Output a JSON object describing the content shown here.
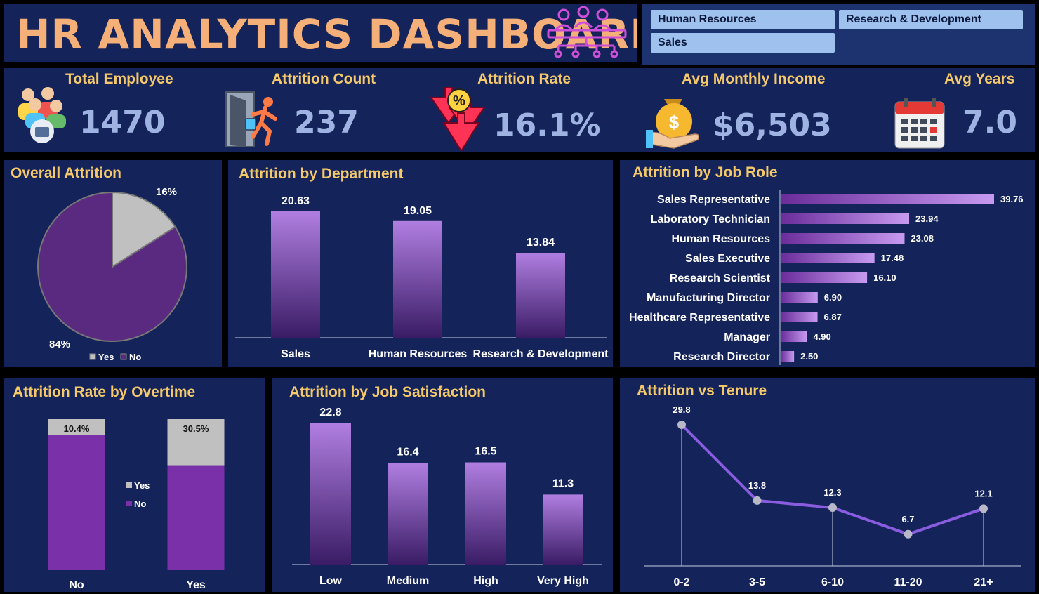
{
  "header": {
    "title": "HR ANALYTICS DASHBOARD"
  },
  "slicers": [
    "Human Resources",
    "Research & Development",
    "Sales"
  ],
  "kpis": [
    {
      "label": "Total Employee",
      "value": "1470",
      "icon": "people-icon"
    },
    {
      "label": "Attrition Count",
      "value": "237",
      "icon": "exit-door-icon"
    },
    {
      "label": "Attrition Rate",
      "value": "16.1%",
      "icon": "percent-down-arrow-icon"
    },
    {
      "label": "Avg Monthly Income",
      "value": "$6,503",
      "icon": "money-bag-icon"
    },
    {
      "label": "Avg Years",
      "value": "7.0",
      "icon": "calendar-icon"
    }
  ],
  "colors": {
    "accent": "#f5c96a",
    "panel": "#14245a",
    "purple": "#7a3bb0",
    "purple_light": "#b07ee0",
    "grey": "#c0c0c0",
    "kpi_value": "#9fb3e3",
    "title_orange": "#f5b07a"
  },
  "chart_data": [
    {
      "type": "pie",
      "title": "Overall Attrition",
      "categories": [
        "Yes",
        "No"
      ],
      "values": [
        16,
        84
      ],
      "value_labels": [
        "16%",
        "84%"
      ],
      "legend": "bottom",
      "colors": [
        "#c0c0c0",
        "#5a2a80"
      ]
    },
    {
      "type": "bar",
      "title": "Attrition by Department",
      "categories": [
        "Sales",
        "Human Resources",
        "Research & Development"
      ],
      "values": [
        20.63,
        19.05,
        13.84
      ],
      "value_labels": [
        "20.63",
        "19.05",
        "13.84"
      ],
      "ylim": [
        0,
        25
      ]
    },
    {
      "type": "bar",
      "orientation": "horizontal",
      "title": "Attrition by Job Role",
      "categories": [
        "Sales Representative",
        "Laboratory Technician",
        "Human Resources",
        "Sales Executive",
        "Research Scientist",
        "Manufacturing Director",
        "Healthcare Representative",
        "Manager",
        "Research Director"
      ],
      "values": [
        39.76,
        23.94,
        23.08,
        17.48,
        16.1,
        6.9,
        6.87,
        4.9,
        2.5
      ],
      "value_labels": [
        "39.76",
        "23.94",
        "23.08",
        "17.48",
        "16.10",
        "6.90",
        "6.87",
        "4.90",
        "2.50"
      ],
      "xlim": [
        0,
        40
      ]
    },
    {
      "type": "bar",
      "stacked": true,
      "percent": true,
      "title": "Attrition Rate by Overtime",
      "categories": [
        "No",
        "Yes"
      ],
      "series": [
        {
          "name": "Yes",
          "values": [
            10.4,
            30.5
          ],
          "value_labels": [
            "10.4%",
            "30.5%"
          ],
          "color": "#c0c0c0"
        },
        {
          "name": "No",
          "values": [
            89.6,
            69.5
          ],
          "color": "#7a30a8"
        }
      ],
      "legend": "center"
    },
    {
      "type": "bar",
      "title": "Attrition by Job Satisfaction",
      "categories": [
        "Low",
        "Medium",
        "High",
        "Very High"
      ],
      "values": [
        22.8,
        16.4,
        16.5,
        11.3
      ],
      "value_labels": [
        "22.8",
        "16.4",
        "16.5",
        "11.3"
      ],
      "ylim": [
        0,
        25
      ]
    },
    {
      "type": "line",
      "title": "Attrition vs Tenure",
      "categories": [
        "0-2",
        "3-5",
        "6-10",
        "11-20",
        "21+"
      ],
      "values": [
        29.8,
        13.8,
        12.3,
        6.7,
        12.1
      ],
      "value_labels": [
        "29.8",
        "13.8",
        "12.3",
        "6.7",
        "12.1"
      ],
      "ylim": [
        0,
        32
      ]
    }
  ]
}
